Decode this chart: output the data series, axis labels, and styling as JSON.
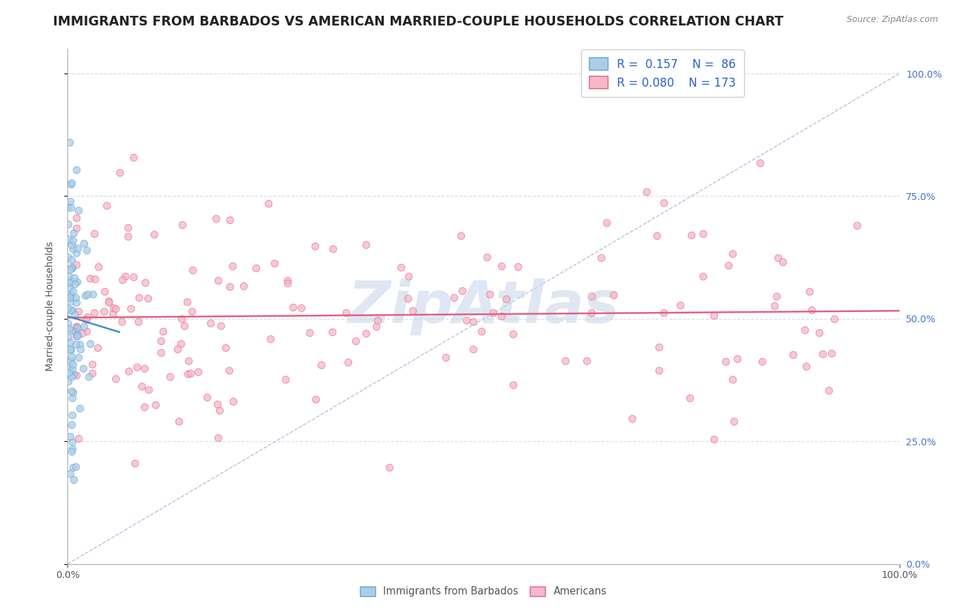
{
  "title": "IMMIGRANTS FROM BARBADOS VS AMERICAN MARRIED-COUPLE HOUSEHOLDS CORRELATION CHART",
  "source": "Source: ZipAtlas.com",
  "ylabel": "Married-couple Households",
  "ytick_vals": [
    0.0,
    0.25,
    0.5,
    0.75,
    1.0
  ],
  "ytick_labels": [
    "0.0%",
    "25.0%",
    "50.0%",
    "75.0%",
    "100.0%"
  ],
  "xtick_vals": [
    0.0,
    1.0
  ],
  "xtick_labels": [
    "0.0%",
    "100.0%"
  ],
  "barbados_R": 0.157,
  "barbados_N": 86,
  "americans_R": 0.08,
  "americans_N": 173,
  "barbados_dot_color": "#6aaed6",
  "barbados_face": "#aecce8",
  "americans_dot_color": "#e87090",
  "americans_face": "#f4b8c8",
  "trend_barbados_color": "#4488cc",
  "trend_americans_color": "#e06080",
  "diag_color": "#a0b8d8",
  "watermark": "ZipAtlas",
  "watermark_color": "#c8d8ea",
  "background_color": "#ffffff",
  "grid_color": "#d8dde8",
  "title_color": "#222222",
  "title_fontsize": 13.5,
  "ylabel_fontsize": 10,
  "tick_fontsize": 10,
  "legend_fontsize": 12,
  "scatter_size": 55,
  "scatter_alpha": 0.75,
  "random_seed": 7
}
